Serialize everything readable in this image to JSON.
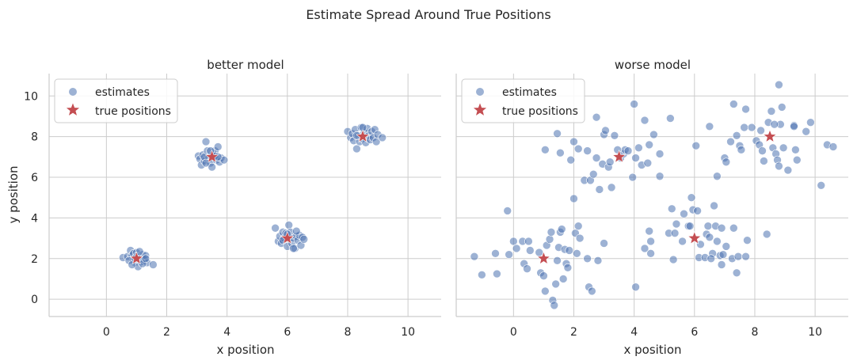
{
  "figure": {
    "suptitle": "Estimate Spread Around True Positions",
    "ylabel": "y position"
  },
  "colors": {
    "estimates": "#4c72b0",
    "true_positions": "#c44e52",
    "grid": "#cccccc",
    "spine": "#cccccc",
    "text": "#262626"
  },
  "chart_data": [
    {
      "type": "scatter",
      "title": "better model",
      "xlabel": "x position",
      "ylabel": "y position",
      "xlim": [
        -1.9,
        11.1
      ],
      "ylim": [
        -0.85,
        11.1
      ],
      "xticks": [
        0,
        2,
        4,
        6,
        8,
        10
      ],
      "yticks": [
        0,
        2,
        4,
        6,
        8,
        10
      ],
      "grid": true,
      "legend": {
        "location": "upper-left",
        "entries": [
          "estimates",
          "true positions"
        ]
      },
      "true_positions": [
        [
          1,
          2
        ],
        [
          3.5,
          7
        ],
        [
          6,
          3
        ],
        [
          8.5,
          8
        ]
      ],
      "series": [
        {
          "name": "estimates",
          "points": [
            [
              0.55,
              2.05
            ],
            [
              0.7,
              2.1
            ],
            [
              0.8,
              2.4
            ],
            [
              0.85,
              2.15
            ],
            [
              0.9,
              1.95
            ],
            [
              0.9,
              2.25
            ],
            [
              0.95,
              1.8
            ],
            [
              1.0,
              2.3
            ],
            [
              1.05,
              1.6
            ],
            [
              1.1,
              2.05
            ],
            [
              1.15,
              1.85
            ],
            [
              1.2,
              2.2
            ],
            [
              1.25,
              1.95
            ],
            [
              1.3,
              2.15
            ],
            [
              1.35,
              1.8
            ],
            [
              0.75,
              1.9
            ],
            [
              1.0,
              2.1
            ],
            [
              1.2,
              1.75
            ],
            [
              0.85,
              1.7
            ],
            [
              1.55,
              1.7
            ],
            [
              0.95,
              2.0
            ],
            [
              1.1,
              2.35
            ],
            [
              1.3,
              2.0
            ],
            [
              3.05,
              7.05
            ],
            [
              3.1,
              6.9
            ],
            [
              3.15,
              6.6
            ],
            [
              3.2,
              7.1
            ],
            [
              3.25,
              6.8
            ],
            [
              3.3,
              7.75
            ],
            [
              3.35,
              7.3
            ],
            [
              3.4,
              6.95
            ],
            [
              3.45,
              6.7
            ],
            [
              3.5,
              6.5
            ],
            [
              3.55,
              7.15
            ],
            [
              3.6,
              7.3
            ],
            [
              3.65,
              6.85
            ],
            [
              3.7,
              7.5
            ],
            [
              3.75,
              6.75
            ],
            [
              3.8,
              6.95
            ],
            [
              3.9,
              6.85
            ],
            [
              3.25,
              7.0
            ],
            [
              3.6,
              7.05
            ],
            [
              3.45,
              7.3
            ],
            [
              3.3,
              6.7
            ],
            [
              3.7,
              7.0
            ],
            [
              5.6,
              3.5
            ],
            [
              5.7,
              2.85
            ],
            [
              5.75,
              3.1
            ],
            [
              5.8,
              2.75
            ],
            [
              5.85,
              3.3
            ],
            [
              5.9,
              3.0
            ],
            [
              5.95,
              3.25
            ],
            [
              6.0,
              2.6
            ],
            [
              6.05,
              3.65
            ],
            [
              6.1,
              3.3
            ],
            [
              6.15,
              2.75
            ],
            [
              6.2,
              3.0
            ],
            [
              6.25,
              2.5
            ],
            [
              6.3,
              3.1
            ],
            [
              6.35,
              2.9
            ],
            [
              6.4,
              3.15
            ],
            [
              6.45,
              2.65
            ],
            [
              6.5,
              3.05
            ],
            [
              6.55,
              2.95
            ],
            [
              6.0,
              3.2
            ],
            [
              5.85,
              2.9
            ],
            [
              6.2,
              2.5
            ],
            [
              6.3,
              3.35
            ],
            [
              8.0,
              8.25
            ],
            [
              8.1,
              7.95
            ],
            [
              8.15,
              8.15
            ],
            [
              8.2,
              7.8
            ],
            [
              8.25,
              8.35
            ],
            [
              8.3,
              7.4
            ],
            [
              8.35,
              8.05
            ],
            [
              8.4,
              7.75
            ],
            [
              8.45,
              8.45
            ],
            [
              8.5,
              7.9
            ],
            [
              8.55,
              8.2
            ],
            [
              8.6,
              7.7
            ],
            [
              8.65,
              8.4
            ],
            [
              8.7,
              8.05
            ],
            [
              8.75,
              7.85
            ],
            [
              8.8,
              8.25
            ],
            [
              8.85,
              7.95
            ],
            [
              8.9,
              8.35
            ],
            [
              8.95,
              7.75
            ],
            [
              9.0,
              8.1
            ],
            [
              9.15,
              7.95
            ],
            [
              8.5,
              8.45
            ],
            [
              8.3,
              8.05
            ]
          ]
        }
      ]
    },
    {
      "type": "scatter",
      "title": "worse model",
      "xlabel": "x position",
      "ylabel": "",
      "xlim": [
        -1.9,
        11.1
      ],
      "ylim": [
        -0.85,
        11.1
      ],
      "xticks": [
        0,
        2,
        4,
        6,
        8,
        10
      ],
      "yticks": [
        0,
        2,
        4,
        6,
        8,
        10
      ],
      "grid": true,
      "legend": {
        "location": "upper-left",
        "entries": [
          "estimates",
          "true positions"
        ]
      },
      "true_positions": [
        [
          1,
          2
        ],
        [
          3.5,
          7
        ],
        [
          6,
          3
        ],
        [
          8.5,
          8
        ]
      ],
      "series": [
        {
          "name": "estimates",
          "points": [
            [
              -1.3,
              2.1
            ],
            [
              -1.05,
              1.2
            ],
            [
              -0.6,
              2.25
            ],
            [
              -0.55,
              1.25
            ],
            [
              -0.2,
              4.35
            ],
            [
              -0.15,
              2.2
            ],
            [
              0.0,
              2.85
            ],
            [
              0.1,
              2.5
            ],
            [
              0.3,
              2.85
            ],
            [
              0.35,
              1.75
            ],
            [
              0.45,
              1.5
            ],
            [
              0.5,
              2.85
            ],
            [
              0.55,
              2.4
            ],
            [
              0.85,
              2.3
            ],
            [
              0.9,
              1.3
            ],
            [
              1.0,
              1.15
            ],
            [
              1.05,
              0.4
            ],
            [
              1.1,
              2.65
            ],
            [
              1.2,
              2.95
            ],
            [
              1.25,
              3.3
            ],
            [
              1.3,
              -0.05
            ],
            [
              1.35,
              -0.3
            ],
            [
              1.4,
              0.75
            ],
            [
              1.45,
              1.9
            ],
            [
              1.5,
              2.55
            ],
            [
              1.55,
              3.3
            ],
            [
              1.6,
              3.45
            ],
            [
              1.65,
              1.0
            ],
            [
              1.7,
              2.45
            ],
            [
              1.75,
              1.75
            ],
            [
              1.8,
              1.55
            ],
            [
              1.85,
              2.4
            ],
            [
              2.0,
              4.95
            ],
            [
              2.05,
              3.25
            ],
            [
              2.1,
              2.25
            ],
            [
              2.15,
              3.6
            ],
            [
              2.2,
              3.0
            ],
            [
              2.45,
              2.0
            ],
            [
              2.5,
              0.6
            ],
            [
              2.6,
              0.4
            ],
            [
              2.8,
              1.9
            ],
            [
              3.0,
              2.75
            ],
            [
              1.05,
              7.35
            ],
            [
              1.45,
              8.15
            ],
            [
              1.55,
              7.2
            ],
            [
              1.9,
              6.85
            ],
            [
              2.0,
              7.75
            ],
            [
              2.15,
              7.4
            ],
            [
              2.35,
              5.85
            ],
            [
              2.45,
              7.3
            ],
            [
              2.55,
              5.85
            ],
            [
              2.65,
              6.15
            ],
            [
              2.75,
              6.95
            ],
            [
              2.75,
              8.95
            ],
            [
              2.85,
              5.4
            ],
            [
              2.95,
              6.65
            ],
            [
              3.0,
              8.1
            ],
            [
              3.05,
              8.3
            ],
            [
              3.15,
              6.5
            ],
            [
              3.25,
              5.5
            ],
            [
              3.35,
              8.05
            ],
            [
              3.45,
              7.35
            ],
            [
              3.55,
              6.95
            ],
            [
              3.65,
              7.15
            ],
            [
              3.7,
              7.35
            ],
            [
              3.8,
              7.3
            ],
            [
              3.95,
              6.0
            ],
            [
              4.0,
              9.6
            ],
            [
              4.05,
              6.95
            ],
            [
              4.15,
              7.45
            ],
            [
              4.25,
              6.6
            ],
            [
              4.35,
              8.8
            ],
            [
              4.45,
              6.7
            ],
            [
              4.5,
              7.6
            ],
            [
              4.65,
              8.1
            ],
            [
              4.85,
              7.15
            ],
            [
              4.85,
              6.05
            ],
            [
              5.2,
              8.9
            ],
            [
              3.2,
              6.75
            ],
            [
              4.05,
              0.6
            ],
            [
              4.35,
              2.5
            ],
            [
              4.5,
              3.35
            ],
            [
              4.55,
              2.25
            ],
            [
              4.55,
              2.85
            ],
            [
              5.15,
              3.25
            ],
            [
              5.25,
              4.45
            ],
            [
              5.3,
              1.95
            ],
            [
              5.35,
              3.25
            ],
            [
              5.4,
              3.7
            ],
            [
              5.6,
              2.85
            ],
            [
              5.65,
              4.2
            ],
            [
              5.8,
              3.6
            ],
            [
              5.85,
              3.6
            ],
            [
              5.9,
              5.0
            ],
            [
              5.95,
              4.4
            ],
            [
              6.05,
              7.55
            ],
            [
              6.1,
              4.35
            ],
            [
              6.15,
              2.05
            ],
            [
              6.2,
              2.7
            ],
            [
              6.35,
              2.05
            ],
            [
              6.4,
              3.2
            ],
            [
              6.45,
              3.6
            ],
            [
              6.5,
              3.05
            ],
            [
              6.6,
              2.25
            ],
            [
              6.7,
              3.6
            ],
            [
              6.65,
              4.6
            ],
            [
              6.75,
              2.85
            ],
            [
              6.85,
              2.15
            ],
            [
              6.9,
              3.5
            ],
            [
              6.95,
              2.2
            ],
            [
              7.05,
              2.6
            ],
            [
              7.25,
              2.0
            ],
            [
              7.3,
              3.5
            ],
            [
              7.4,
              1.3
            ],
            [
              7.45,
              2.1
            ],
            [
              7.7,
              2.1
            ],
            [
              7.75,
              2.9
            ],
            [
              6.55,
              2.0
            ],
            [
              6.9,
              1.7
            ],
            [
              6.5,
              8.5
            ],
            [
              6.75,
              6.05
            ],
            [
              7.0,
              6.95
            ],
            [
              7.05,
              6.75
            ],
            [
              7.2,
              7.75
            ],
            [
              7.3,
              9.6
            ],
            [
              7.4,
              8.05
            ],
            [
              7.5,
              7.55
            ],
            [
              7.55,
              7.35
            ],
            [
              7.65,
              8.45
            ],
            [
              7.7,
              9.35
            ],
            [
              7.9,
              8.45
            ],
            [
              8.05,
              7.8
            ],
            [
              8.15,
              7.6
            ],
            [
              8.2,
              8.3
            ],
            [
              8.25,
              7.3
            ],
            [
              8.3,
              6.8
            ],
            [
              8.4,
              3.2
            ],
            [
              8.45,
              8.7
            ],
            [
              8.55,
              9.25
            ],
            [
              8.6,
              7.45
            ],
            [
              8.7,
              7.15
            ],
            [
              8.75,
              6.85
            ],
            [
              8.8,
              6.55
            ],
            [
              8.85,
              8.6
            ],
            [
              8.95,
              7.45
            ],
            [
              8.9,
              9.45
            ],
            [
              9.1,
              6.35
            ],
            [
              9.3,
              8.55
            ],
            [
              9.35,
              7.35
            ],
            [
              9.4,
              6.85
            ],
            [
              9.7,
              8.25
            ],
            [
              9.85,
              8.7
            ],
            [
              10.2,
              5.6
            ],
            [
              10.4,
              7.6
            ],
            [
              10.6,
              7.5
            ],
            [
              8.8,
              10.55
            ],
            [
              8.65,
              8.6
            ],
            [
              9.3,
              8.5
            ]
          ]
        }
      ]
    }
  ]
}
